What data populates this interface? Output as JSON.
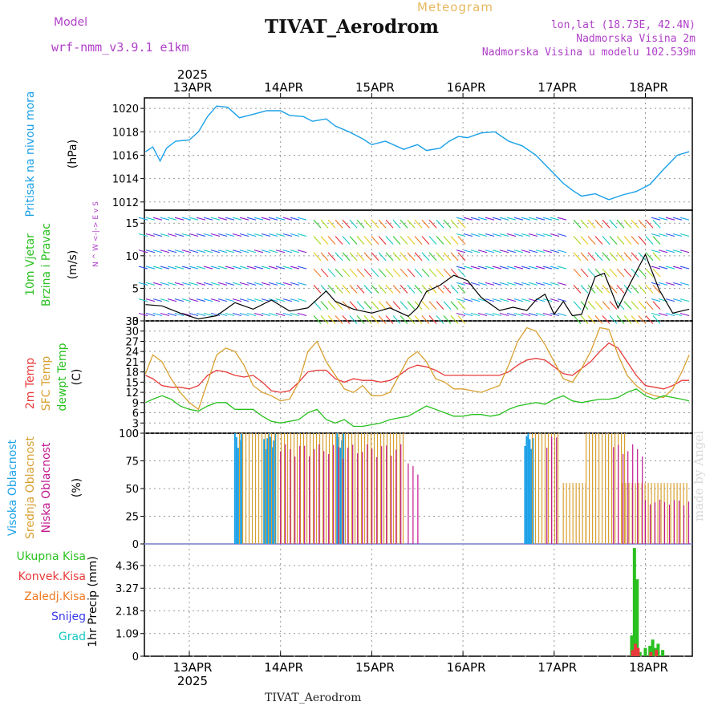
{
  "header": {
    "model_label": "Model",
    "model_name": "wrf-nmm_v3.9.1 e1km",
    "title": "TIVAT_Aerodrom",
    "meteogram_label": "Meteogram",
    "location": "lon,lat (18.73E, 42.4N)",
    "elevation": "Nadmorska Visina 2m",
    "model_elevation": "Nadmorska Visina u modelu 102.539m",
    "footer": "TIVAT_Aerodrom",
    "signature": "made by Angel"
  },
  "colors": {
    "pressure": "#1aa0e8",
    "temp2m": "#e83a3a",
    "sfc_temp": "#d8a030",
    "dewpt": "#2ac020",
    "high_cloud": "#1aa0e8",
    "mid_cloud": "#d8a030",
    "low_cloud": "#c01890",
    "total_precip": "#2ac020",
    "conv_precip": "#e83a3a",
    "purple_label": "#b040c8"
  },
  "chart_data": [
    {
      "type": "line",
      "panel": "pressure",
      "label": "Pritisak na nivou mora",
      "ylabel": "(hPa)",
      "x_ticks": [
        "13APR",
        "14APR",
        "15APR",
        "16APR",
        "17APR",
        "18APR"
      ],
      "year": "2025",
      "ylim": [
        1011.3,
        1020.9
      ],
      "yticks": [
        "1012",
        "1014",
        "1016",
        "1018",
        "1020"
      ],
      "series": [
        {
          "color_key": "pressure",
          "x": [
            -0.48,
            -0.4,
            -0.32,
            -0.25,
            -0.15,
            0.0,
            0.1,
            0.2,
            0.3,
            0.42,
            0.55,
            0.7,
            0.85,
            1.0,
            1.1,
            1.25,
            1.35,
            1.5,
            1.6,
            1.75,
            1.9,
            2.0,
            2.15,
            2.35,
            2.5,
            2.6,
            2.75,
            2.85,
            2.95,
            3.05,
            3.2,
            3.35,
            3.5,
            3.65,
            3.8,
            3.9,
            4.0,
            4.1,
            4.2,
            4.3,
            4.45,
            4.6,
            4.75,
            4.9,
            5.05,
            5.2,
            5.35,
            5.48
          ],
          "y": [
            1016.3,
            1016.7,
            1015.5,
            1016.6,
            1017.2,
            1017.3,
            1018.0,
            1019.3,
            1020.2,
            1020.1,
            1019.2,
            1019.5,
            1019.8,
            1019.8,
            1019.4,
            1019.3,
            1018.9,
            1019.1,
            1018.5,
            1018.0,
            1017.4,
            1016.9,
            1017.2,
            1016.5,
            1016.9,
            1016.4,
            1016.6,
            1017.2,
            1017.6,
            1017.5,
            1017.9,
            1018.0,
            1017.2,
            1016.8,
            1016.0,
            1015.2,
            1014.4,
            1013.6,
            1013.0,
            1012.5,
            1012.7,
            1012.2,
            1012.6,
            1012.9,
            1013.5,
            1014.8,
            1016.0,
            1016.3
          ]
        }
      ]
    },
    {
      "type": "line",
      "panel": "wind",
      "label": "10m Vjetar Brzina i Pravac",
      "ylabel": "(m/s)",
      "direction_legend": "N ^ W <-|-> E v S",
      "ylim": [
        0,
        17
      ],
      "yticks": [
        "0",
        "5",
        "10",
        "15"
      ],
      "series": [
        {
          "name": "speed",
          "x": [
            -0.48,
            -0.3,
            -0.1,
            0.1,
            0.3,
            0.5,
            0.7,
            0.9,
            1.1,
            1.3,
            1.5,
            1.6,
            1.8,
            2.0,
            2.2,
            2.4,
            2.5,
            2.6,
            2.75,
            2.9,
            3.05,
            3.2,
            3.4,
            3.55,
            3.7,
            3.8,
            3.9,
            4.0,
            4.1,
            4.2,
            4.3,
            4.45,
            4.55,
            4.7,
            4.85,
            5.0,
            5.15,
            5.3,
            5.48
          ],
          "y": [
            2.5,
            2.3,
            1.2,
            0.3,
            0.8,
            2.8,
            1.8,
            3.2,
            1.5,
            2.0,
            4.6,
            3.0,
            1.8,
            1.2,
            2.0,
            0.7,
            2.0,
            4.5,
            5.5,
            7.0,
            6.2,
            3.6,
            1.6,
            2.1,
            1.6,
            3.2,
            4.1,
            1.0,
            3.0,
            0.8,
            1.0,
            6.8,
            7.3,
            2.0,
            6.2,
            10.2,
            4.8,
            1.2,
            1.8
          ]
        }
      ]
    },
    {
      "type": "line",
      "panel": "temperature",
      "labels": [
        "2m Temp",
        "SFC Temp",
        "dewpt Temp"
      ],
      "ylabel": "(C)",
      "ylim": [
        0,
        33
      ],
      "yticks": [
        "0",
        "3",
        "6",
        "9",
        "12",
        "15",
        "18",
        "21",
        "24",
        "27",
        "30",
        "33"
      ],
      "x": [
        -0.48,
        -0.4,
        -0.3,
        -0.2,
        -0.1,
        0.0,
        0.1,
        0.2,
        0.3,
        0.4,
        0.5,
        0.6,
        0.7,
        0.8,
        0.9,
        1.0,
        1.1,
        1.2,
        1.3,
        1.4,
        1.5,
        1.6,
        1.7,
        1.8,
        1.9,
        2.0,
        2.1,
        2.2,
        2.3,
        2.4,
        2.5,
        2.6,
        2.7,
        2.8,
        2.9,
        3.0,
        3.1,
        3.2,
        3.3,
        3.4,
        3.5,
        3.6,
        3.7,
        3.8,
        3.9,
        4.0,
        4.1,
        4.2,
        4.3,
        4.4,
        4.5,
        4.6,
        4.7,
        4.8,
        4.9,
        5.0,
        5.1,
        5.2,
        5.3,
        5.4,
        5.48
      ],
      "series": [
        {
          "name": "2m Temp",
          "color_key": "temp2m",
          "y": [
            17,
            16,
            14,
            13.5,
            13.5,
            13,
            14,
            17,
            18.5,
            18,
            17,
            16.5,
            17,
            15,
            12.5,
            12,
            12.5,
            15,
            18,
            18.5,
            18.5,
            16,
            15,
            16,
            15.5,
            15.5,
            15,
            15.5,
            17,
            19,
            20,
            19.5,
            18.5,
            17,
            17,
            17,
            17,
            17,
            17,
            17,
            18,
            20,
            21.5,
            22,
            21.5,
            19.5,
            17.5,
            17,
            19,
            21,
            24,
            26.5,
            25,
            21,
            17,
            14,
            13.5,
            13,
            14,
            15.5,
            15.5
          ]
        },
        {
          "name": "SFC Temp",
          "color_key": "sfc_temp",
          "y": [
            17.5,
            23,
            21,
            16,
            12,
            9,
            7,
            15,
            23,
            25,
            24,
            20,
            14,
            12,
            11,
            9.5,
            10,
            15,
            24,
            27,
            21,
            17,
            13,
            12,
            14,
            11,
            11,
            12,
            17,
            22,
            24,
            21,
            16,
            15,
            13,
            13,
            12.5,
            12,
            13,
            14,
            20,
            27,
            31,
            30,
            26,
            21,
            16,
            15,
            19,
            24,
            31,
            30.5,
            23,
            17,
            14,
            12,
            11,
            10.5,
            13,
            18,
            23
          ]
        },
        {
          "name": "dewpt Temp",
          "color_key": "dewpt",
          "y": [
            9,
            10,
            11,
            10,
            8,
            7,
            6.5,
            8,
            9,
            9,
            7,
            7,
            7,
            5,
            3.5,
            3,
            3.5,
            4,
            6,
            7,
            4,
            3,
            4,
            2,
            2,
            2.5,
            3,
            4,
            4.5,
            5,
            6.5,
            8,
            7,
            6,
            5,
            5,
            5.5,
            5.5,
            5,
            5.5,
            7,
            8,
            8.5,
            9,
            8.5,
            10,
            11,
            9.5,
            9,
            9.5,
            10,
            10,
            10.5,
            12,
            13,
            11,
            10,
            11,
            10.5,
            10,
            9.5
          ]
        }
      ]
    },
    {
      "type": "bar",
      "panel": "cloud",
      "labels": [
        "Visoka Oblacnost",
        "Srednja Oblacnost",
        "Niska Oblacnost"
      ],
      "ylabel": "(%)",
      "ylim": [
        0,
        100
      ],
      "yticks": [
        "0",
        "25",
        "50",
        "75",
        "100"
      ],
      "series": [
        {
          "name": "Visoka Oblacnost",
          "color_key": "high_cloud",
          "ranges": [
            [
              0.5,
              0.58,
              100
            ],
            [
              0.82,
              0.96,
              100
            ],
            [
              1.62,
              1.7,
              100
            ],
            [
              3.68,
              3.78,
              100
            ]
          ]
        },
        {
          "name": "Srednja Oblacnost",
          "color_key": "mid_cloud",
          "ranges": [
            [
              0.55,
              2.35,
              100
            ],
            [
              3.76,
              4.05,
              100
            ],
            [
              4.1,
              4.35,
              55
            ],
            [
              4.35,
              4.8,
              100
            ],
            [
              4.75,
              5.48,
              55
            ]
          ]
        },
        {
          "name": "Niska Oblacnost",
          "color_key": "low_cloud",
          "ranges": [
            [
              1.0,
              2.35,
              90
            ],
            [
              2.4,
              2.55,
              73
            ],
            [
              3.92,
              4.05,
              98
            ],
            [
              4.65,
              5.0,
              90
            ],
            [
              5.0,
              5.48,
              40
            ]
          ]
        }
      ]
    },
    {
      "type": "bar",
      "panel": "precipitation",
      "labels": [
        "Ukupna Kisa",
        "Konvek.Kisa",
        "Zaledj.Kisa",
        "Snijeg",
        "Grad"
      ],
      "ylabel": "1hr Precip (mm)",
      "ylim": [
        0,
        5.4
      ],
      "yticks": [
        "0",
        "1.09",
        "2.18",
        "3.27",
        "4.36"
      ],
      "series": [
        {
          "name": "Ukupna Kisa",
          "color_key": "total_precip",
          "x": [
            4.85,
            4.88,
            4.91,
            4.94,
            5.0,
            5.05,
            5.08,
            5.11,
            5.14,
            5.19
          ],
          "y": [
            1.0,
            5.2,
            3.7,
            0.2,
            0.4,
            0.5,
            0.8,
            0.4,
            0.6,
            0.3
          ]
        },
        {
          "name": "Konvek.Kisa",
          "color_key": "conv_precip",
          "x": [
            4.86,
            4.89,
            4.92,
            5.06,
            5.12
          ],
          "y": [
            0.3,
            0.6,
            0.4,
            0.2,
            0.3
          ]
        }
      ]
    }
  ]
}
